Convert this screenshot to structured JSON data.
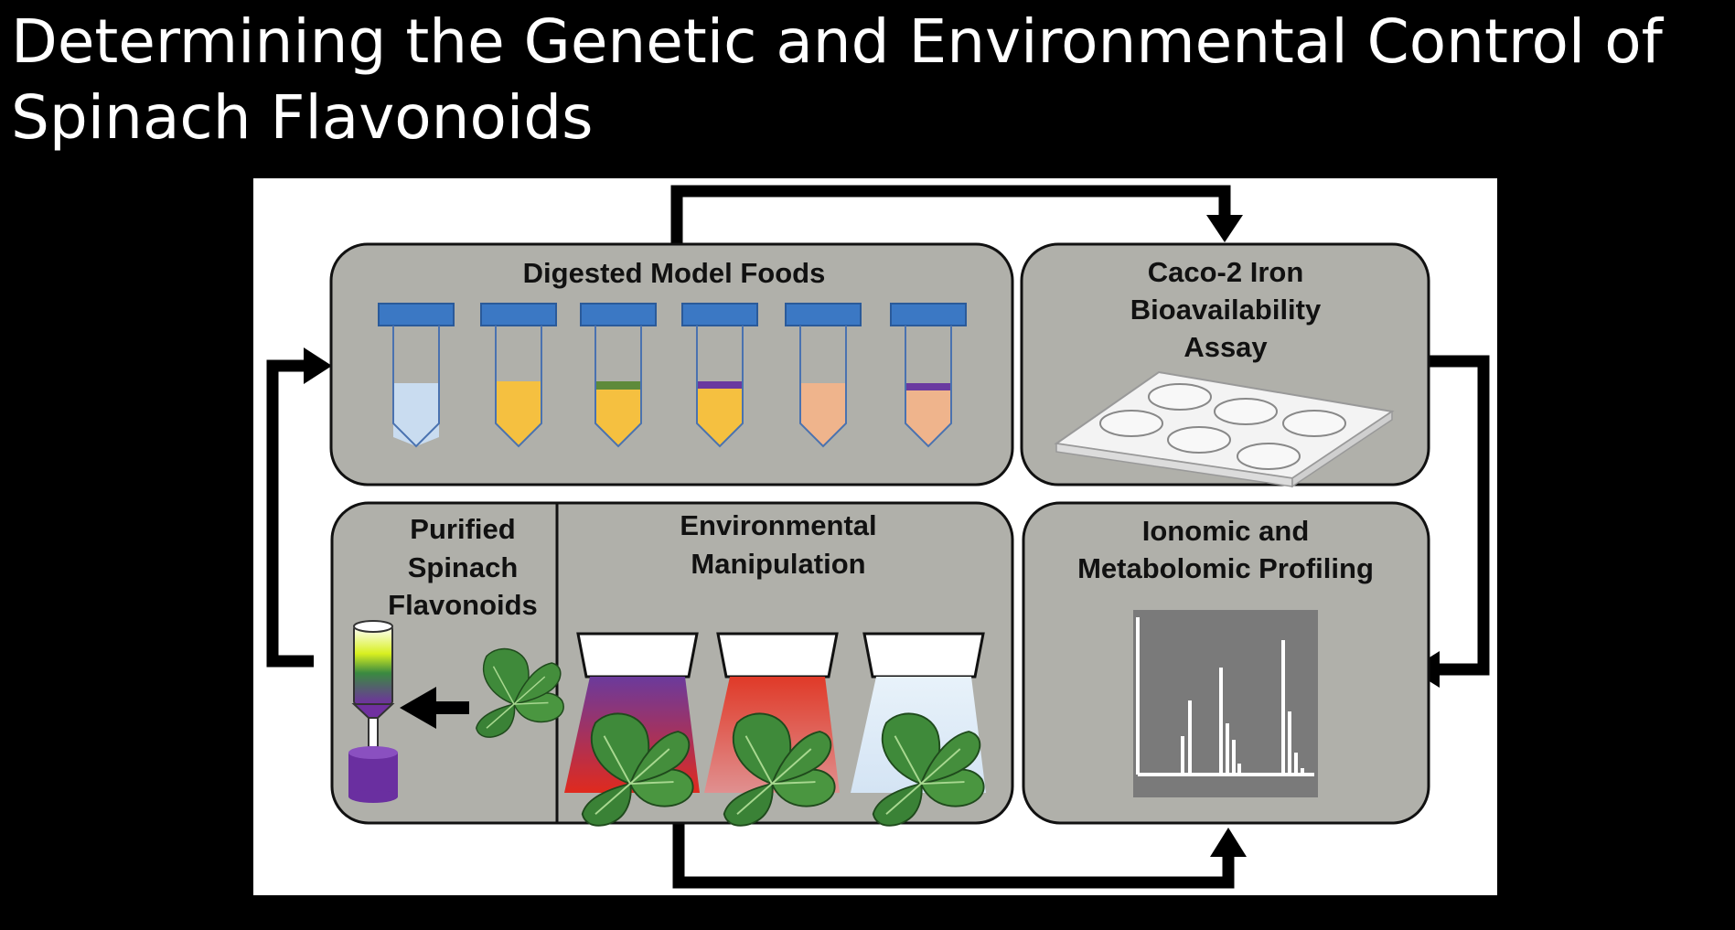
{
  "slide": {
    "title_line1": "Determining the Genetic and Environmental Control of",
    "title_line2": "Spinach Flavonoids"
  },
  "diagram": {
    "digested_model_foods": {
      "label": "Digested Model Foods",
      "tubes": [
        {
          "liquid": "#c9dcf0",
          "band": null
        },
        {
          "liquid": "#f5c040",
          "band": null
        },
        {
          "liquid": "#f5c040",
          "band": "#5e8a3a"
        },
        {
          "liquid": "#f5c040",
          "band": "#6a3aa0"
        },
        {
          "liquid": "#efb48c",
          "band": null
        },
        {
          "liquid": "#efb48c",
          "band": "#6a3aa0"
        }
      ]
    },
    "caco2": {
      "label_line1": "Caco-2 Iron",
      "label_line2": "Bioavailability",
      "label_line3": "Assay"
    },
    "purified": {
      "label_line1": "Purified",
      "label_line2": "Spinach",
      "label_line3": "Flavonoids"
    },
    "environmental": {
      "label_line1": "Environmental",
      "label_line2": "Manipulation",
      "lights": [
        {
          "beam_top": "#6b3a9c",
          "beam_bottom": "#e02a1e"
        },
        {
          "beam_top": "#e03a28",
          "beam_bottom": "#e08a8a"
        },
        {
          "beam_top": "#e6f0f8",
          "beam_bottom": "#d8e6f4"
        }
      ]
    },
    "profiling": {
      "label_line1": "Ionomic and",
      "label_line2": "Metabolomic Profiling"
    },
    "colors": {
      "box_fill": "#b0b0aa",
      "cap_blue": "#3b78c4",
      "leaf_green": "#3f8a3a",
      "chart_bg": "#7a7a7a",
      "vial_purple": "#6a2fa0"
    }
  }
}
